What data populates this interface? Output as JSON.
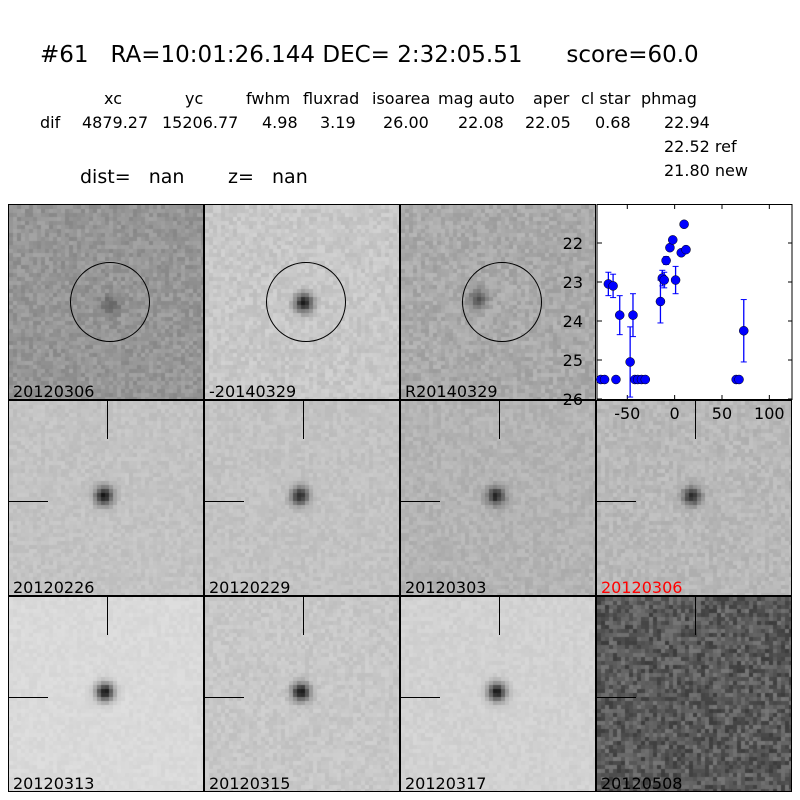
{
  "title": {
    "id": "#61",
    "ra": "RA=10:01:26.144",
    "dec": "DEC= 2:32:05.51",
    "score": "score=60.0"
  },
  "table": {
    "headers": [
      "xc",
      "yc",
      "fwhm",
      "fluxrad",
      "isoarea",
      "mag auto",
      "aper",
      "cl star",
      "phmag"
    ],
    "row_label": "dif",
    "values": [
      "4879.27",
      "15206.77",
      "4.98",
      "3.19",
      "26.00",
      "22.08",
      "22.05",
      "0.68",
      "22.94"
    ],
    "ref": "22.52 ref",
    "new": "21.80 new"
  },
  "dist": "dist=   nan",
  "z": "z=   nan",
  "panels": [
    {
      "label": "20120306",
      "circle": true
    },
    {
      "label": "-20140329",
      "circle": true
    },
    {
      "label": "R20140329",
      "circle": true
    },
    {
      "label": "20120226"
    },
    {
      "label": "20120229"
    },
    {
      "label": "20120303"
    },
    {
      "label": "20120306",
      "color": "#ff0000"
    },
    {
      "label": "20120313"
    },
    {
      "label": "20120315"
    },
    {
      "label": "20120317"
    },
    {
      "label": "20120508"
    }
  ],
  "chart_data": {
    "type": "scatter",
    "xlim": [
      -82,
      125
    ],
    "ylim": [
      26,
      21
    ],
    "y_inverted": true,
    "xticks": [
      "-50",
      "0",
      "50",
      "100"
    ],
    "xtick_values": [
      -50,
      0,
      50,
      100
    ],
    "yticks": [
      "22",
      "23",
      "24",
      "25",
      "26"
    ],
    "ytick_values": [
      22,
      23,
      24,
      25,
      26
    ],
    "marker_color": "#0000ff",
    "points": [
      {
        "x": -78,
        "y": 25.5,
        "err": 0
      },
      {
        "x": -74,
        "y": 25.5,
        "err": 0
      },
      {
        "x": -70,
        "y": 23.05,
        "err": 0.3
      },
      {
        "x": -65,
        "y": 23.1,
        "err": 0.3
      },
      {
        "x": -62,
        "y": 25.5,
        "err": 0
      },
      {
        "x": -58,
        "y": 23.85,
        "err": 0.5
      },
      {
        "x": -47,
        "y": 25.05,
        "err": 0.9
      },
      {
        "x": -44,
        "y": 23.85,
        "err": 0.55
      },
      {
        "x": -42,
        "y": 25.5,
        "err": 0
      },
      {
        "x": -39,
        "y": 25.5,
        "err": 0
      },
      {
        "x": -35,
        "y": 25.5,
        "err": 0
      },
      {
        "x": -31,
        "y": 25.5,
        "err": 0
      },
      {
        "x": -15,
        "y": 23.5,
        "err": 0.55
      },
      {
        "x": -13,
        "y": 22.9,
        "err": 0.2
      },
      {
        "x": -11,
        "y": 22.95,
        "err": 0.2
      },
      {
        "x": -9,
        "y": 22.45,
        "err": 0.1
      },
      {
        "x": -5,
        "y": 22.12,
        "err": 0.05
      },
      {
        "x": -2,
        "y": 21.92,
        "err": 0.05
      },
      {
        "x": 1,
        "y": 22.95,
        "err": 0.35
      },
      {
        "x": 7,
        "y": 22.25,
        "err": 0.05
      },
      {
        "x": 10,
        "y": 21.52,
        "err": 0.03
      },
      {
        "x": 12,
        "y": 22.17,
        "err": 0.05
      },
      {
        "x": 65,
        "y": 25.5,
        "err": 0
      },
      {
        "x": 68,
        "y": 25.5,
        "err": 0
      },
      {
        "x": 73,
        "y": 24.25,
        "err": 0.8
      }
    ]
  }
}
